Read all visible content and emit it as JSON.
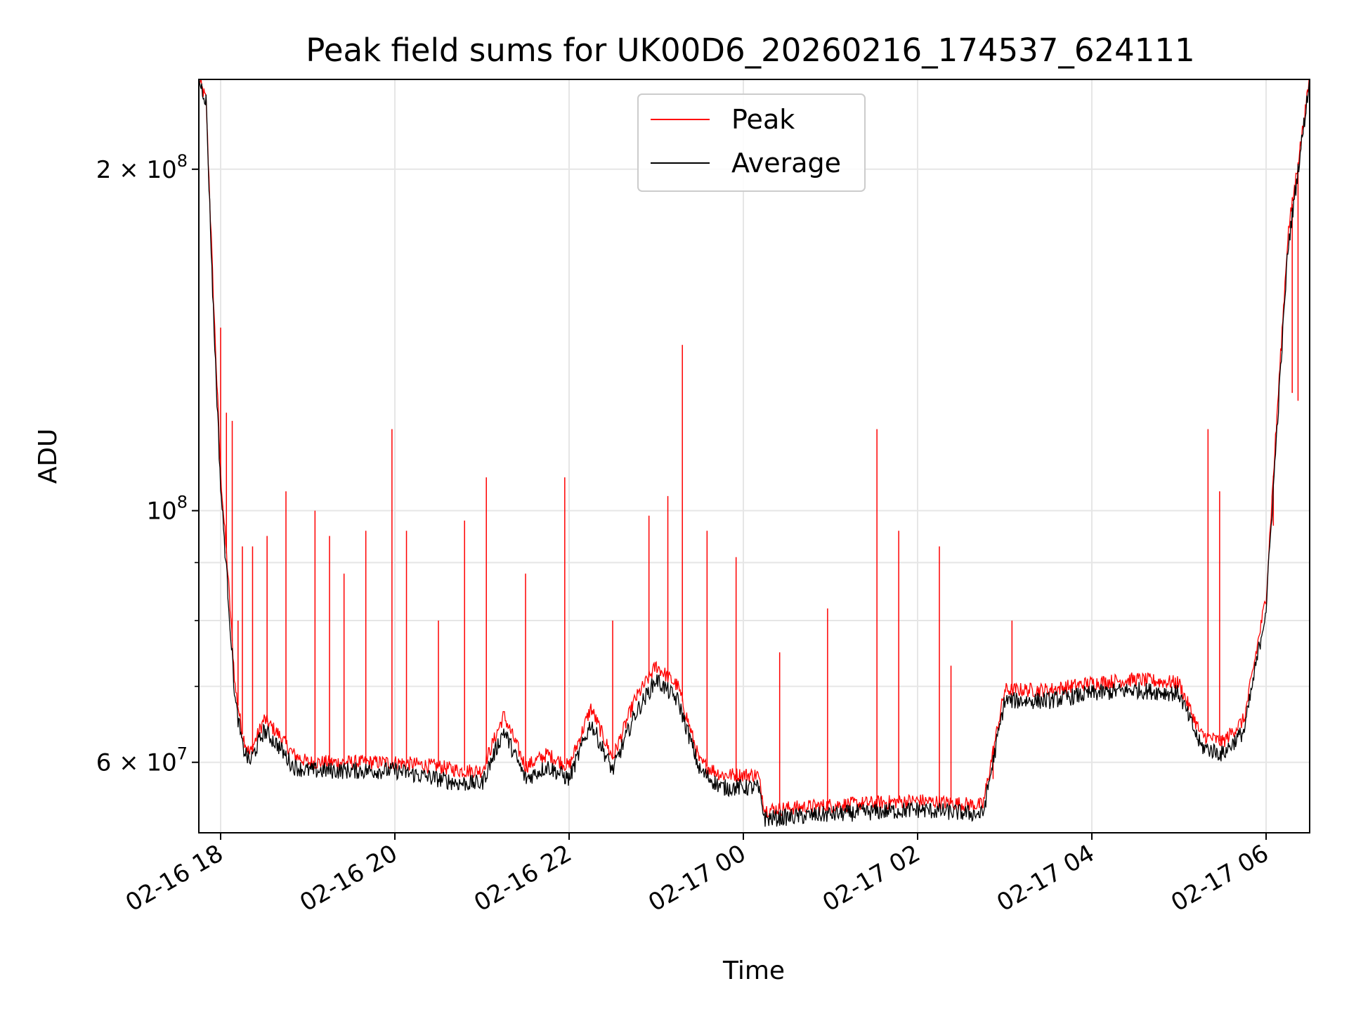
{
  "chart_data": {
    "type": "line",
    "title": "Peak field sums for UK00D6_20260216_174537_624111",
    "xlabel": "Time",
    "ylabel": "ADU",
    "yscale": "log",
    "grid": true,
    "legend_position": "upper center",
    "xlim": [
      "02-16 17:45",
      "02-17 06:30"
    ],
    "ylim": [
      52000000,
      240000000
    ],
    "x_ticks": [
      "02-16 18",
      "02-16 20",
      "02-16 22",
      "02-17 00",
      "02-17 02",
      "02-17 04",
      "02-17 06"
    ],
    "y_ticks": [
      {
        "value": 200000000,
        "mantissa": "2",
        "exponent": "8"
      },
      {
        "value": 100000000,
        "mantissa": "",
        "exponent": "8"
      },
      {
        "value": 60000000,
        "mantissa": "6",
        "exponent": "7"
      }
    ],
    "y_minor_ticks": [
      70000000,
      80000000,
      90000000
    ],
    "series": [
      {
        "name": "Peak",
        "color": "#ff0000"
      },
      {
        "name": "Average",
        "color": "#000000"
      }
    ],
    "x": [
      "02-16 17:45",
      "02-16 17:50",
      "02-16 17:55",
      "02-16 18:00",
      "02-16 18:05",
      "02-16 18:10",
      "02-16 18:15",
      "02-16 18:20",
      "02-16 18:30",
      "02-16 18:40",
      "02-16 18:50",
      "02-16 19:00",
      "02-16 19:15",
      "02-16 19:30",
      "02-16 20:00",
      "02-16 20:30",
      "02-16 20:45",
      "02-16 21:00",
      "02-16 21:15",
      "02-16 21:30",
      "02-16 21:45",
      "02-16 22:00",
      "02-16 22:15",
      "02-16 22:30",
      "02-16 22:45",
      "02-16 23:00",
      "02-16 23:15",
      "02-16 23:30",
      "02-16 23:45",
      "02-17 00:10",
      "02-17 00:15",
      "02-17 01:00",
      "02-17 02:00",
      "02-17 02:45",
      "02-17 03:00",
      "02-17 03:30",
      "02-17 04:00",
      "02-17 04:30",
      "02-17 05:00",
      "02-17 05:15",
      "02-17 05:30",
      "02-17 05:45",
      "02-17 06:00",
      "02-17 06:15",
      "02-17 06:30"
    ],
    "average_values": [
      240000000,
      230000000,
      150000000,
      105000000,
      85000000,
      68000000,
      62000000,
      60000000,
      64000000,
      62000000,
      59500000,
      59000000,
      59000000,
      59000000,
      59000000,
      58000000,
      57500000,
      57500000,
      64000000,
      58000000,
      59500000,
      58000000,
      65000000,
      59000000,
      66000000,
      71000000,
      68000000,
      59000000,
      57000000,
      57000000,
      53500000,
      54000000,
      54500000,
      54000000,
      68000000,
      68000000,
      69000000,
      69500000,
      69000000,
      62000000,
      61000000,
      64000000,
      82000000,
      170000000,
      240000000
    ],
    "peak_values": [
      240000000,
      230000000,
      155000000,
      108000000,
      88000000,
      70000000,
      63500000,
      61000000,
      65500000,
      63500000,
      61000000,
      60000000,
      60000000,
      60000000,
      60000000,
      59500000,
      59000000,
      59000000,
      66000000,
      59500000,
      61000000,
      59500000,
      67000000,
      60500000,
      68000000,
      73000000,
      70000000,
      60000000,
      58500000,
      58500000,
      54500000,
      55000000,
      55500000,
      55000000,
      69500000,
      69500000,
      70500000,
      71000000,
      70500000,
      63500000,
      62500000,
      65500000,
      84000000,
      175000000,
      240000000
    ],
    "peak_spikes": [
      {
        "x": "02-16 18:00",
        "value": 145000000
      },
      {
        "x": "02-16 18:04",
        "value": 122000000
      },
      {
        "x": "02-16 18:08",
        "value": 120000000
      },
      {
        "x": "02-16 18:12",
        "value": 80000000
      },
      {
        "x": "02-16 18:15",
        "value": 93000000
      },
      {
        "x": "02-16 18:22",
        "value": 93000000
      },
      {
        "x": "02-16 18:32",
        "value": 95000000
      },
      {
        "x": "02-16 18:45",
        "value": 104000000
      },
      {
        "x": "02-16 19:05",
        "value": 100000000
      },
      {
        "x": "02-16 19:15",
        "value": 95000000
      },
      {
        "x": "02-16 19:25",
        "value": 88000000
      },
      {
        "x": "02-16 19:40",
        "value": 96000000
      },
      {
        "x": "02-16 19:58",
        "value": 118000000
      },
      {
        "x": "02-16 20:08",
        "value": 96000000
      },
      {
        "x": "02-16 20:30",
        "value": 80000000
      },
      {
        "x": "02-16 20:48",
        "value": 98000000
      },
      {
        "x": "02-16 21:03",
        "value": 107000000
      },
      {
        "x": "02-16 21:30",
        "value": 88000000
      },
      {
        "x": "02-16 21:57",
        "value": 107000000
      },
      {
        "x": "02-16 22:30",
        "value": 80000000
      },
      {
        "x": "02-16 22:55",
        "value": 99000000
      },
      {
        "x": "02-16 23:08",
        "value": 103000000
      },
      {
        "x": "02-16 23:18",
        "value": 140000000
      },
      {
        "x": "02-16 23:35",
        "value": 96000000
      },
      {
        "x": "02-16 23:55",
        "value": 91000000
      },
      {
        "x": "02-17 00:25",
        "value": 75000000
      },
      {
        "x": "02-17 00:58",
        "value": 82000000
      },
      {
        "x": "02-17 01:32",
        "value": 118000000
      },
      {
        "x": "02-17 01:47",
        "value": 96000000
      },
      {
        "x": "02-17 02:15",
        "value": 93000000
      },
      {
        "x": "02-17 02:23",
        "value": 73000000
      },
      {
        "x": "02-17 02:52",
        "value": 58000000
      },
      {
        "x": "02-17 03:05",
        "value": 80000000
      },
      {
        "x": "02-17 05:20",
        "value": 118000000
      },
      {
        "x": "02-17 05:28",
        "value": 104000000
      },
      {
        "x": "02-17 06:05",
        "value": 97000000
      },
      {
        "x": "02-17 06:18",
        "value": 127000000
      },
      {
        "x": "02-17 06:22",
        "value": 125000000
      }
    ]
  }
}
